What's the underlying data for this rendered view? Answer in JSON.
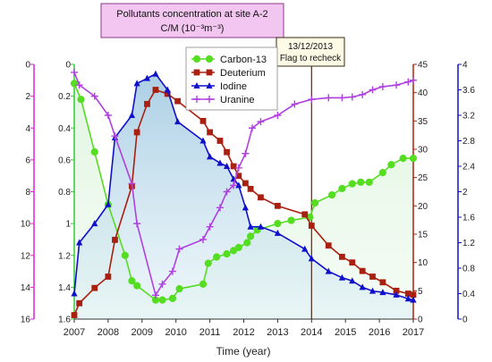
{
  "chart_data": {
    "type": "line",
    "title_line1": "Pollutants concentration at site A-2",
    "title_line2": "C/M (10⁻³m⁻³)",
    "xlabel": "Time (year)",
    "xlim": [
      2007,
      2017
    ],
    "x_ticks": [
      "2007",
      "2008",
      "2009",
      "2010",
      "2011",
      "2012",
      "2013",
      "2014",
      "2015",
      "2016",
      "2017"
    ],
    "axes": {
      "left_outer": {
        "range": [
          16,
          0
        ],
        "ticks": [
          "0",
          "2",
          "4",
          "6",
          "8",
          "10",
          "12",
          "14",
          "16"
        ],
        "color": "#e020e0",
        "series": "Uranine"
      },
      "left_inner": {
        "range": [
          1.6,
          0
        ],
        "ticks": [
          "0",
          "0.2",
          "0.4",
          "0.6",
          "0.8",
          "1",
          "1.2",
          "1.4",
          "1.6"
        ],
        "color": "#33cc33",
        "series": "Carbon-13"
      },
      "right_inner": {
        "range": [
          0,
          45
        ],
        "ticks": [
          "0",
          "5",
          "10",
          "15",
          "20",
          "25",
          "30",
          "35",
          "40",
          "45"
        ],
        "color": "#b02010",
        "series": "Deuterium"
      },
      "right_outer": {
        "range": [
          0,
          4
        ],
        "ticks": [
          "0",
          "0.4",
          "0.8",
          "1.2",
          "1.6",
          "2",
          "2.4",
          "2.8",
          "3.2",
          "3.6",
          "4"
        ],
        "color": "#1010cc",
        "series": "Iodine"
      }
    },
    "series": [
      {
        "name": "Carbon-13",
        "color": "#55dd22",
        "marker": "circle",
        "axis": "left_inner",
        "x": [
          2007.0,
          2007.2,
          2007.6,
          2008.0,
          2008.5,
          2008.7,
          2008.85,
          2009.4,
          2009.6,
          2009.9,
          2010.1,
          2010.8,
          2010.95,
          2011.2,
          2011.5,
          2011.7,
          2011.85,
          2012.1,
          2012.2,
          2012.4,
          2013.0,
          2013.4,
          2013.95,
          2014.1,
          2014.6,
          2014.9,
          2015.2,
          2015.45,
          2015.7,
          2016.1,
          2016.35,
          2016.7,
          2017.0
        ],
        "y": [
          0.12,
          0.22,
          0.55,
          0.88,
          1.2,
          1.36,
          1.39,
          1.48,
          1.48,
          1.47,
          1.41,
          1.38,
          1.25,
          1.21,
          1.19,
          1.17,
          1.15,
          1.12,
          1.08,
          1.04,
          1.0,
          0.98,
          0.96,
          0.87,
          0.82,
          0.78,
          0.75,
          0.74,
          0.74,
          0.68,
          0.63,
          0.59,
          0.59
        ]
      },
      {
        "name": "Deuterium",
        "color": "#aa2010",
        "marker": "square",
        "axis": "right_inner",
        "x": [
          2007.0,
          2007.15,
          2007.6,
          2008.0,
          2008.2,
          2008.7,
          2008.85,
          2009.15,
          2009.4,
          2009.75,
          2010.05,
          2010.8,
          2011.0,
          2011.3,
          2011.5,
          2011.7,
          2011.85,
          2012.05,
          2012.2,
          2012.5,
          2013.0,
          2013.8,
          2014.0,
          2014.5,
          2014.9,
          2015.2,
          2015.5,
          2015.8,
          2016.1,
          2016.5,
          2016.85,
          2017.0
        ],
        "y": [
          0.7,
          2.8,
          5.5,
          7.5,
          14,
          23.5,
          33,
          38,
          40.5,
          39.8,
          38.5,
          35,
          33,
          31.5,
          29.5,
          27,
          25.3,
          24,
          23,
          21.5,
          20,
          18.5,
          16.5,
          13,
          11,
          10,
          8.5,
          7.5,
          6.5,
          5,
          4.5,
          4.3
        ]
      },
      {
        "name": "Iodine",
        "color": "#1010cc",
        "marker": "triangle",
        "axis": "right_outer",
        "x": [
          2007.0,
          2007.15,
          2007.6,
          2008.0,
          2008.2,
          2008.7,
          2008.85,
          2009.15,
          2009.4,
          2009.75,
          2010.05,
          2010.8,
          2011.0,
          2011.3,
          2011.5,
          2011.7,
          2011.85,
          2012.05,
          2012.2,
          2012.5,
          2013.0,
          2013.8,
          2014.0,
          2014.5,
          2014.9,
          2015.2,
          2015.5,
          2015.8,
          2016.1,
          2016.5,
          2016.85,
          2017.0
        ],
        "y": [
          0.4,
          1.2,
          1.5,
          1.8,
          2.85,
          3.2,
          3.7,
          3.78,
          3.85,
          3.6,
          3.1,
          2.8,
          2.55,
          2.45,
          2.4,
          2.2,
          2.1,
          1.75,
          1.45,
          1.45,
          1.35,
          1.1,
          0.95,
          0.75,
          0.65,
          0.6,
          0.5,
          0.44,
          0.42,
          0.38,
          0.32,
          0.3
        ]
      },
      {
        "name": "Uranine",
        "color": "#b040e0",
        "marker": "plus",
        "axis": "left_outer",
        "x": [
          2007.0,
          2007.15,
          2007.6,
          2008.0,
          2008.2,
          2008.7,
          2008.85,
          2009.4,
          2009.6,
          2009.9,
          2010.1,
          2010.8,
          2011.0,
          2011.3,
          2011.5,
          2011.7,
          2011.85,
          2012.05,
          2012.25,
          2012.5,
          2013.0,
          2013.5,
          2014.0,
          2014.5,
          2014.9,
          2015.2,
          2015.5,
          2015.8,
          2016.1,
          2016.5,
          2016.85,
          2017.0
        ],
        "y": [
          0.5,
          1.3,
          2.0,
          3.2,
          4.5,
          7.5,
          10.0,
          14.5,
          13.8,
          13.0,
          11.6,
          11.0,
          10.2,
          9.0,
          8.0,
          7.6,
          6.5,
          5.6,
          4.0,
          3.6,
          3.2,
          2.5,
          2.2,
          2.1,
          2.1,
          2.05,
          1.9,
          1.6,
          1.4,
          1.3,
          1.1,
          1.0
        ]
      }
    ],
    "annotation": {
      "x": 2014.0,
      "line1": "13/12/2013",
      "line2": "Flag to recheck"
    },
    "legend": "top-center"
  }
}
